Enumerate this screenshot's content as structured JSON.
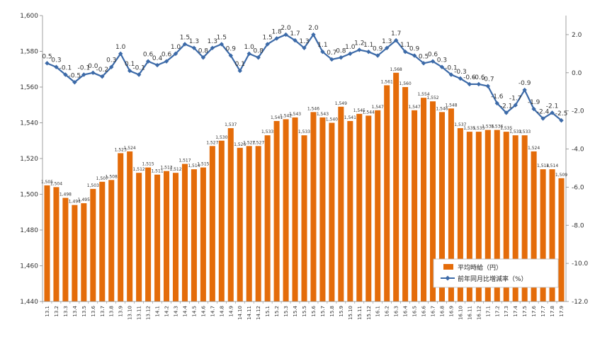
{
  "chart_data": {
    "type": "bar+line",
    "categories": [
      "13.1",
      "13.2",
      "13.3",
      "13.4",
      "13.5",
      "13.6",
      "13.7",
      "13.8",
      "13.9",
      "13.10",
      "13.11",
      "13.12",
      "14.1",
      "14.2",
      "14.3",
      "14.4",
      "14.5",
      "14.6",
      "14.7",
      "14.8",
      "14.9",
      "14.10",
      "14.11",
      "14.12",
      "15.1",
      "15.2",
      "15.3",
      "15.4",
      "15.5",
      "15.6",
      "15.7",
      "15.8",
      "15.9",
      "15.10",
      "15.11",
      "15.12",
      "16.1",
      "16.2",
      "16.3",
      "16.4",
      "16.5",
      "16.6",
      "16.7",
      "16.8",
      "16.9",
      "16.10",
      "16.11",
      "16.12",
      "17.1",
      "17.2",
      "17.3",
      "17.4",
      "17.5",
      "17.6",
      "17.7",
      "17.8",
      "17.9"
    ],
    "series": [
      {
        "name": "平均時給（円）",
        "type": "bar",
        "axis": "left",
        "color": "#E46C0A",
        "values": [
          1505,
          1504,
          1498,
          1494,
          1495,
          1503,
          1507,
          1508,
          1523,
          1524,
          1512,
          1515,
          1511,
          1513,
          1512,
          1517,
          1514,
          1515,
          1527,
          1530,
          1537,
          1526,
          1527,
          1527,
          1533,
          1541,
          1542,
          1543,
          1533,
          1546,
          1543,
          1540,
          1549,
          1541,
          1545,
          1544,
          1547,
          1561,
          1568,
          1560,
          1547,
          1554,
          1552,
          1546,
          1548,
          1537,
          1535,
          1535,
          1536,
          1536,
          1535,
          1533,
          1533,
          1524,
          1514,
          1514,
          1509
        ],
        "labels": [
          "1,505",
          "1,504",
          "1,498",
          "1,494",
          "1,495",
          "1,503",
          "1,507",
          "1,508",
          "1,523",
          "1,524",
          "1,512",
          "1,515",
          "1,511",
          "1,513",
          "1,512",
          "1,517",
          "1,514",
          "1,515",
          "1,527",
          "1,530",
          "1,537",
          "1,526",
          "1,527",
          "1,527",
          "1,533",
          "1,541",
          "1,542",
          "1,543",
          "1,533",
          "1,546",
          "1,543",
          "1,540",
          "1,549",
          "1,541",
          "1,545",
          "1,544",
          "1,547",
          "1,561",
          "1,568",
          "1,560",
          "1,547",
          "1,554",
          "1,552",
          "1,546",
          "1,548",
          "1,537",
          "1,535",
          "1,535",
          "1,536",
          "1,536",
          "1,535",
          "1,533",
          "1,533",
          "1,524",
          "1,514",
          "1,514",
          "1,509"
        ]
      },
      {
        "name": "前年同月比増減率（%）",
        "type": "line",
        "axis": "right",
        "color": "#3C6AA8",
        "values": [
          0.5,
          0.3,
          -0.1,
          -0.5,
          -0.1,
          0.0,
          -0.2,
          0.3,
          1.0,
          0.1,
          -0.1,
          0.6,
          0.4,
          0.6,
          1.0,
          1.5,
          1.3,
          0.8,
          1.3,
          1.5,
          0.9,
          0.1,
          1.0,
          0.8,
          1.5,
          1.8,
          2.0,
          1.7,
          1.3,
          2.0,
          1.1,
          0.7,
          0.8,
          1.0,
          1.2,
          1.1,
          0.9,
          1.3,
          1.7,
          1.1,
          0.9,
          0.5,
          0.6,
          0.3,
          -0.1,
          -0.3,
          -0.6,
          -0.6,
          -0.7,
          -1.6,
          -2.1,
          -1.7,
          -0.9,
          -1.9,
          -2.4,
          -2.1,
          -2.5
        ],
        "labels": [
          "0.5",
          "0.3",
          "-0.1",
          "-0.5",
          "-0.1",
          "0.0",
          "-0.2",
          "0.3",
          "1.0",
          "0.1",
          "-0.1",
          "0.6",
          "0.4",
          "0.6",
          "1.0",
          "1.5",
          "1.3",
          "0.8",
          "1.3",
          "1.5",
          "0.9",
          "0.1",
          "1.0",
          "0.8",
          "1.5",
          "1.8",
          "2.0",
          "1.7",
          "1.3",
          "2.0",
          "1.1",
          "0.7",
          "0.8",
          "1.0",
          "1.2",
          "1.1",
          "0.9",
          "1.3",
          "1.7",
          "1.1",
          "0.9",
          "0.5",
          "0.6",
          "0.3",
          "-0.1",
          "-0.3",
          "-0.6",
          "-0.6",
          "-0.7",
          "-1.6",
          "-2.1",
          "-1.7",
          "-0.9",
          "-1.9",
          "-2.4",
          "-2.1",
          "-2.5"
        ]
      }
    ],
    "left_axis": {
      "range": [
        1440,
        1600
      ],
      "ticks": [
        1440,
        1460,
        1480,
        1500,
        1520,
        1540,
        1560,
        1580,
        1600
      ],
      "tick_labels": [
        "1,440",
        "1,460",
        "1,480",
        "1,500",
        "1,520",
        "1,540",
        "1,560",
        "1,580",
        "1,600"
      ]
    },
    "right_axis": {
      "range": [
        -12,
        3
      ],
      "ticks": [
        -12,
        -10,
        -8,
        -6,
        -4,
        -2,
        0,
        2
      ],
      "tick_labels": [
        "-12.0",
        "-10.0",
        "-8.0",
        "-6.0",
        "-4.0",
        "-2.0",
        "0.0",
        "2.0"
      ]
    },
    "grid": false,
    "legend": {
      "placement": "bottom-right",
      "entries": [
        "平均時給（円）",
        "前年同月比増減率（%）"
      ]
    }
  }
}
